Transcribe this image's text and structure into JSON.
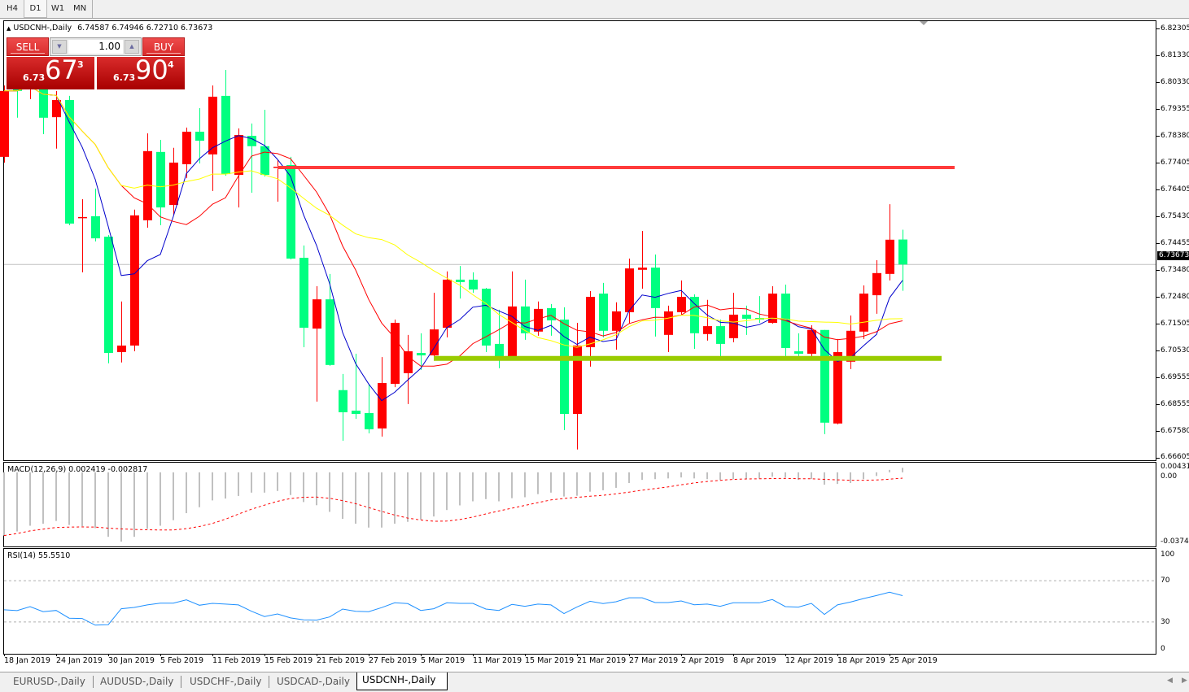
{
  "timeframes": {
    "items": [
      "H4",
      "D1",
      "W1",
      "MN"
    ],
    "selected": "D1"
  },
  "chart": {
    "symbol_title": "USDCNH-,Daily",
    "ohlc_readout": "6.74587 6.74946 6.72710 6.73673",
    "current_price_label": "6.73673"
  },
  "trade_panel": {
    "sell_label": "SELL",
    "buy_label": "BUY",
    "lot_value": "1.00",
    "sell_price": {
      "prefix": "6.73",
      "big": "67",
      "sup": "3"
    },
    "buy_price": {
      "prefix": "6.73",
      "big": "90",
      "sup": "4"
    }
  },
  "bottom_tabs": {
    "items": [
      "EURUSD-,Daily",
      "AUDUSD-,Daily",
      "USDCHF-,Daily",
      "USDCAD-,Daily",
      "USDCNH-,Daily"
    ],
    "selected": "USDCNH-,Daily"
  },
  "chart_data": [
    {
      "type": "candlestick",
      "symbol": "USDCNH-",
      "timeframe": "Daily",
      "bull_color": "#ff0000",
      "bear_color": "#00ff80",
      "ylim": [
        6.66605,
        6.82305
      ],
      "y_tick_labels": [
        "6.82305",
        "6.81330",
        "6.80330",
        "6.79355",
        "6.78380",
        "6.77405",
        "6.76405",
        "6.75430",
        "6.74455",
        "6.73480",
        "6.72480",
        "6.71505",
        "6.70530",
        "6.69555",
        "6.68555",
        "6.67580",
        "6.66605"
      ],
      "x_tick_labels": [
        {
          "label": "18 Jan 2019",
          "bar": 0
        },
        {
          "label": "24 Jan 2019",
          "bar": 4
        },
        {
          "label": "30 Jan 2019",
          "bar": 8
        },
        {
          "label": "5 Feb 2019",
          "bar": 12
        },
        {
          "label": "11 Feb 2019",
          "bar": 16
        },
        {
          "label": "15 Feb 2019",
          "bar": 20
        },
        {
          "label": "21 Feb 2019",
          "bar": 24
        },
        {
          "label": "27 Feb 2019",
          "bar": 28
        },
        {
          "label": "5 Mar 2019",
          "bar": 32
        },
        {
          "label": "11 Mar 2019",
          "bar": 36
        },
        {
          "label": "15 Mar 2019",
          "bar": 40
        },
        {
          "label": "21 Mar 2019",
          "bar": 44
        },
        {
          "label": "27 Mar 2019",
          "bar": 48
        },
        {
          "label": "2 Apr 2019",
          "bar": 52
        },
        {
          "label": "8 Apr 2019",
          "bar": 56
        },
        {
          "label": "12 Apr 2019",
          "bar": 60
        },
        {
          "label": "18 Apr 2019",
          "bar": 64
        },
        {
          "label": "25 Apr 2019",
          "bar": 68
        }
      ],
      "current_price": 6.73673,
      "candles_ohlc": [
        [
          6.7761,
          6.8022,
          6.774,
          6.8002
        ],
        [
          6.8037,
          6.8052,
          6.7904,
          6.8002
        ],
        [
          6.8008,
          6.8067,
          6.7972,
          6.8052
        ],
        [
          6.8037,
          6.8052,
          6.7844,
          6.7904
        ],
        [
          6.7906,
          6.8002,
          6.7791,
          6.7969
        ],
        [
          6.7969,
          6.7984,
          6.7511,
          6.7517
        ],
        [
          6.7538,
          6.7606,
          6.7339,
          6.7541
        ],
        [
          6.7544,
          6.7645,
          6.7452,
          6.7463
        ],
        [
          6.7469,
          6.7475,
          6.7006,
          6.7044
        ],
        [
          6.7047,
          6.7232,
          6.7009,
          6.7071
        ],
        [
          6.7071,
          6.7568,
          6.705,
          6.7547
        ],
        [
          6.7529,
          6.7847,
          6.7502,
          6.7782
        ],
        [
          6.7779,
          6.7823,
          6.7511,
          6.7576
        ],
        [
          6.7585,
          6.7794,
          6.755,
          6.774
        ],
        [
          6.7734,
          6.7868,
          6.7683,
          6.7853
        ],
        [
          6.7853,
          6.7939,
          6.7737,
          6.782
        ],
        [
          6.777,
          6.8022,
          6.7636,
          6.7981
        ],
        [
          6.7984,
          6.8079,
          6.7692,
          6.7698
        ],
        [
          6.7695,
          6.7865,
          6.7576,
          6.7841
        ],
        [
          6.7838,
          6.7883,
          6.763,
          6.78
        ],
        [
          6.78,
          6.7933,
          6.7689,
          6.7695
        ],
        [
          6.7722,
          6.7749,
          6.7597,
          6.7725
        ],
        [
          6.7731,
          6.7761,
          6.7386,
          6.7389
        ],
        [
          6.7392,
          6.7437,
          6.7065,
          6.7136
        ],
        [
          6.7133,
          6.7288,
          6.6866,
          6.724
        ],
        [
          6.724,
          6.7333,
          6.6997,
          6.7
        ],
        [
          6.6908,
          6.6967,
          6.6723,
          6.6827
        ],
        [
          6.6833,
          6.7041,
          6.6803,
          6.6821
        ],
        [
          6.6824,
          6.6928,
          6.675,
          6.6765
        ],
        [
          6.6768,
          6.7029,
          6.6738,
          6.6934
        ],
        [
          6.6931,
          6.7166,
          6.6919,
          6.7154
        ],
        [
          6.697,
          6.711,
          6.6857,
          6.705
        ],
        [
          6.7044,
          6.7116,
          6.6982,
          6.7035
        ],
        [
          6.7035,
          6.7264,
          6.7026,
          6.713
        ],
        [
          6.7136,
          6.7342,
          6.7101,
          6.7312
        ],
        [
          6.7312,
          6.7362,
          6.7243,
          6.7303
        ],
        [
          6.7312,
          6.7339,
          6.7264,
          6.7276
        ],
        [
          6.7279,
          6.7282,
          6.7047,
          6.7071
        ],
        [
          6.7077,
          6.7202,
          6.6988,
          6.7026
        ],
        [
          6.7026,
          6.7342,
          6.7026,
          6.7214
        ],
        [
          6.7214,
          6.7312,
          6.7092,
          6.7116
        ],
        [
          6.7122,
          6.7232,
          6.7107,
          6.7205
        ],
        [
          6.7208,
          6.7223,
          6.7107,
          6.7163
        ],
        [
          6.7166,
          6.7211,
          6.6762,
          6.6821
        ],
        [
          6.6821,
          6.7154,
          6.6691,
          6.7071
        ],
        [
          6.7065,
          6.727,
          6.6994,
          6.7249
        ],
        [
          6.7261,
          6.73,
          6.7101,
          6.7125
        ],
        [
          6.7125,
          6.7229,
          6.7056,
          6.7196
        ],
        [
          6.7193,
          6.7389,
          6.7151,
          6.7353
        ],
        [
          6.7348,
          6.749,
          6.7279,
          6.7356
        ],
        [
          6.7356,
          6.7404,
          6.7104,
          6.7208
        ],
        [
          6.711,
          6.7217,
          6.7047,
          6.7196
        ],
        [
          6.7193,
          6.7309,
          6.7181,
          6.7249
        ],
        [
          6.7249,
          6.7258,
          6.7059,
          6.7116
        ],
        [
          6.7113,
          6.7238,
          6.7089,
          6.7142
        ],
        [
          6.7142,
          6.7166,
          6.7026,
          6.7077
        ],
        [
          6.7098,
          6.7264,
          6.7083,
          6.7184
        ],
        [
          6.7184,
          6.7217,
          6.711,
          6.7169
        ],
        [
          6.7172,
          6.7252,
          6.7154,
          6.7166
        ],
        [
          6.7154,
          6.7288,
          6.7151,
          6.7261
        ],
        [
          6.7261,
          6.7294,
          6.7026,
          6.7062
        ],
        [
          6.705,
          6.7116,
          6.7026,
          6.7041
        ],
        [
          6.7041,
          6.7145,
          6.7026,
          6.7128
        ],
        [
          6.7128,
          6.7128,
          6.6747,
          6.6789
        ],
        [
          6.6786,
          6.7095,
          6.6783,
          6.7047
        ],
        [
          6.7012,
          6.7181,
          6.6985,
          6.7125
        ],
        [
          6.7122,
          6.7291,
          6.7095,
          6.7261
        ],
        [
          6.7255,
          6.7383,
          6.7187,
          6.7336
        ],
        [
          6.7333,
          6.7588,
          6.7309,
          6.7458
        ],
        [
          6.74587,
          6.74946,
          6.7271,
          6.73673
        ]
      ],
      "moving_averages": [
        {
          "color": "#0000cc",
          "period": 5
        },
        {
          "color": "#ff0000",
          "period": 10
        },
        {
          "color": "#ffff00",
          "period": 20
        }
      ],
      "horizontal_lines": [
        {
          "price": 6.7722,
          "color": "#ff3b3b",
          "from_bar": 21,
          "to_bar": 73
        },
        {
          "price": 6.7024,
          "color": "#99cc00",
          "from_bar": 33,
          "to_bar": 72
        }
      ]
    },
    {
      "type": "bar",
      "indicator": "MACD",
      "title": "MACD(12,26,9) 0.002419 -0.002817",
      "ylim": [
        -0.037468,
        0.004319
      ],
      "y_tick_labels": [
        "0.004319",
        "0.00",
        "-0.037468"
      ],
      "histogram_color": "#c0c0c0",
      "signal_color": "#ff0000",
      "signal_period": 9,
      "histogram": [
        -0.0342,
        -0.032,
        -0.0289,
        -0.0278,
        -0.0263,
        -0.0285,
        -0.0292,
        -0.0302,
        -0.0349,
        -0.0375,
        -0.0349,
        -0.0306,
        -0.0289,
        -0.0259,
        -0.0221,
        -0.0189,
        -0.0152,
        -0.0142,
        -0.0128,
        -0.011,
        -0.011,
        -0.0101,
        -0.0123,
        -0.0161,
        -0.0178,
        -0.0214,
        -0.0252,
        -0.0278,
        -0.0299,
        -0.0299,
        -0.0278,
        -0.0268,
        -0.0256,
        -0.0239,
        -0.0204,
        -0.0179,
        -0.0157,
        -0.0145,
        -0.0157,
        -0.014,
        -0.0135,
        -0.0118,
        -0.011,
        -0.0131,
        -0.0127,
        -0.0105,
        -0.0097,
        -0.0084,
        -0.0058,
        -0.0041,
        -0.0037,
        -0.0033,
        -0.0028,
        -0.0033,
        -0.0037,
        -0.0041,
        -0.0037,
        -0.0037,
        -0.0033,
        -0.0024,
        -0.0028,
        -0.0041,
        -0.0036,
        -0.0067,
        -0.0063,
        -0.0058,
        -0.0037,
        -0.002,
        0.0013,
        0.002419
      ]
    },
    {
      "type": "line",
      "indicator": "RSI",
      "title": "RSI(14) 55.5510",
      "ylim": [
        0,
        100
      ],
      "levels": [
        70,
        30
      ],
      "y_tick_labels": [
        "100",
        "70",
        "30",
        "0"
      ],
      "line_color": "#1e90ff",
      "values": [
        41.8,
        41.0,
        44.9,
        40.0,
        41.2,
        33.7,
        33.4,
        26.9,
        27.4,
        42.8,
        44.1,
        46.5,
        48.3,
        48.3,
        51.4,
        46.2,
        48.0,
        47.3,
        46.5,
        40.4,
        35.3,
        37.8,
        33.9,
        32.1,
        31.8,
        34.9,
        42.5,
        40.4,
        40.0,
        43.9,
        48.6,
        47.8,
        41.2,
        42.8,
        48.6,
        48.0,
        48.0,
        42.5,
        41.2,
        47.0,
        45.2,
        47.3,
        46.5,
        38.1,
        44.6,
        50.1,
        47.8,
        49.6,
        53.5,
        53.5,
        48.8,
        48.8,
        50.4,
        46.7,
        47.3,
        45.2,
        48.6,
        48.6,
        48.6,
        51.7,
        44.9,
        44.4,
        48.0,
        37.3,
        46.5,
        49.3,
        52.7,
        55.6,
        58.8,
        55.551
      ]
    }
  ]
}
